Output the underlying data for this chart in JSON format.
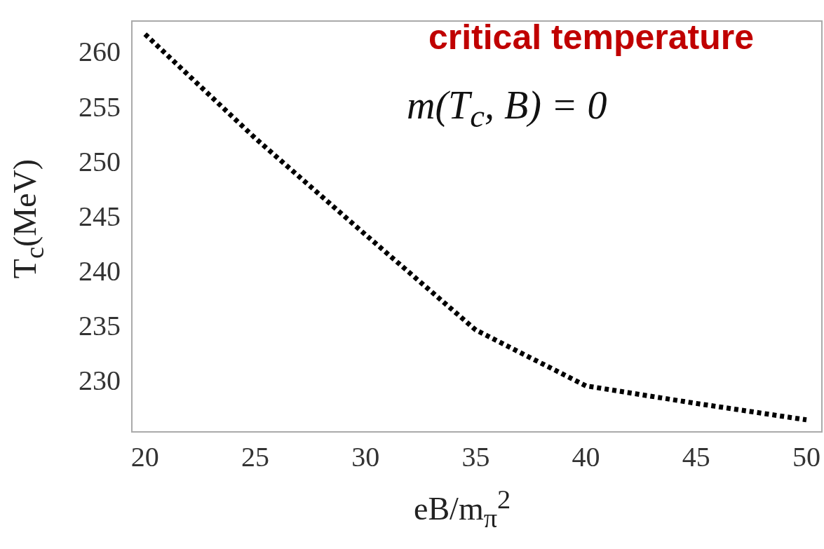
{
  "chart_data": {
    "type": "line",
    "title": "critical temperature",
    "xlabel": "eB/m$_{π}$$^{2}$",
    "ylabel": "T$_{c}$(MeV)",
    "annotations": [
      "m(T$_{c}$, B) = 0"
    ],
    "x": [
      20,
      25,
      30,
      35,
      40,
      45,
      50
    ],
    "series": [
      {
        "color": "#000000",
        "values": [
          261.8,
          252.3,
          243.5,
          234.8,
          229.7,
          228.1,
          226.6
        ]
      }
    ],
    "xlim": [
      19.4,
      50.7
    ],
    "xticks": [
      20,
      25,
      30,
      35,
      40,
      45,
      50
    ],
    "ylim": [
      225.5,
      263
    ],
    "yticks": [
      230,
      235,
      240,
      245,
      250,
      255,
      260
    ],
    "grid": false,
    "legend": false,
    "marker": "none",
    "line_style": "dotted"
  }
}
